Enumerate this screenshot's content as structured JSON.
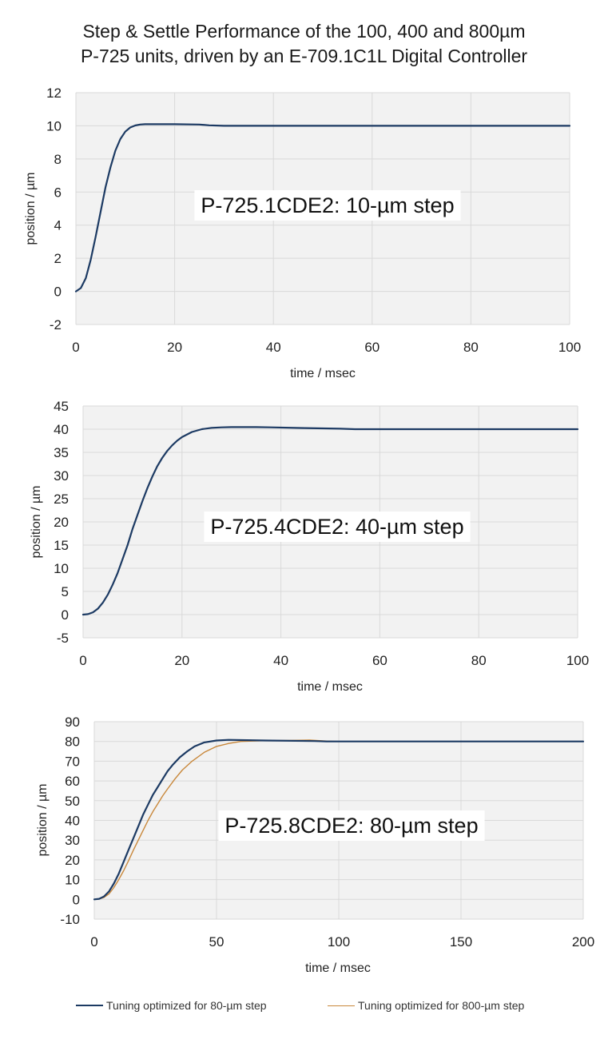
{
  "title": {
    "line1": "Step & Settle Performance of the 100, 400 and 800µm",
    "line2": "P-725 units, driven by an E-709.1C1L Digital Controller"
  },
  "colors": {
    "series_80um": "#1c3a63",
    "series_800um": "#c8873a",
    "grid": "#d9d9d9",
    "plot_bg": "#f2f2f2"
  },
  "chart_data": [
    {
      "type": "line",
      "annotation": "P-725.1CDE2: 10-µm step",
      "xlabel": "time / msec",
      "ylabel": "position / µm",
      "xlim": [
        0,
        100
      ],
      "ylim": [
        -2,
        12
      ],
      "xticks": [
        0,
        20,
        40,
        60,
        80,
        100
      ],
      "yticks": [
        -2,
        0,
        2,
        4,
        6,
        8,
        10,
        12
      ],
      "grid": true,
      "series": [
        {
          "color": "#1c3a63",
          "x": [
            0,
            1,
            2,
            3,
            4,
            5,
            6,
            7,
            8,
            9,
            10,
            11,
            12,
            13,
            14,
            15,
            17,
            20,
            25,
            27,
            30,
            40,
            60,
            80,
            100
          ],
          "y": [
            0,
            0.2,
            0.8,
            1.9,
            3.3,
            4.8,
            6.3,
            7.5,
            8.5,
            9.2,
            9.65,
            9.9,
            10.02,
            10.08,
            10.1,
            10.1,
            10.1,
            10.1,
            10.08,
            10.03,
            10.0,
            10.0,
            10.0,
            10.0,
            10.0
          ]
        }
      ]
    },
    {
      "type": "line",
      "annotation": "P-725.4CDE2: 40-µm step",
      "xlabel": "time / msec",
      "ylabel": "position / µm",
      "xlim": [
        0,
        100
      ],
      "ylim": [
        -5,
        45
      ],
      "xticks": [
        0,
        20,
        40,
        60,
        80,
        100
      ],
      "yticks": [
        -5,
        0,
        5,
        10,
        15,
        20,
        25,
        30,
        35,
        40,
        45
      ],
      "grid": true,
      "series": [
        {
          "color": "#1c3a63",
          "x": [
            0,
            1,
            2,
            3,
            4,
            5,
            6,
            7,
            8,
            9,
            10,
            11,
            12,
            13,
            14,
            15,
            16,
            17,
            18,
            19,
            20,
            22,
            24,
            26,
            28,
            30,
            35,
            38,
            45,
            52,
            55,
            60,
            80,
            100
          ],
          "y": [
            0,
            0.1,
            0.5,
            1.3,
            2.6,
            4.3,
            6.5,
            9.0,
            12.0,
            15.0,
            18.5,
            21.5,
            24.5,
            27.3,
            29.8,
            32.0,
            33.8,
            35.3,
            36.5,
            37.5,
            38.3,
            39.4,
            40.0,
            40.3,
            40.4,
            40.45,
            40.45,
            40.4,
            40.25,
            40.1,
            40.0,
            40.0,
            40.0,
            40.0
          ]
        }
      ]
    },
    {
      "type": "line",
      "annotation": "P-725.8CDE2: 80-µm step",
      "xlabel": "time / msec",
      "ylabel": "position / µm",
      "xlim": [
        0,
        200
      ],
      "ylim": [
        -10,
        90
      ],
      "xticks": [
        0,
        50,
        100,
        150,
        200
      ],
      "yticks": [
        -10,
        0,
        10,
        20,
        30,
        40,
        50,
        60,
        70,
        80,
        90
      ],
      "grid": true,
      "series": [
        {
          "name": "Tuning optimized for 80-µm step",
          "color": "#1c3a63",
          "x": [
            0,
            2,
            4,
            6,
            8,
            10,
            12,
            14,
            16,
            18,
            20,
            22,
            24,
            26,
            28,
            30,
            32,
            35,
            38,
            41,
            45,
            50,
            55,
            60,
            70,
            90,
            95,
            100,
            150,
            200
          ],
          "y": [
            0,
            0.3,
            1.5,
            4,
            8,
            13,
            19,
            25,
            31,
            37,
            43,
            48,
            53,
            57,
            61,
            65,
            68,
            72,
            75,
            77.5,
            79.5,
            80.5,
            80.8,
            80.7,
            80.5,
            80.2,
            80.0,
            80.0,
            80.0,
            80.0
          ]
        },
        {
          "name": "Tuning optimized for 800-µm step",
          "color": "#c8873a",
          "x": [
            0,
            2,
            4,
            6,
            8,
            10,
            12,
            14,
            16,
            18,
            20,
            22,
            24,
            26,
            28,
            30,
            33,
            36,
            40,
            45,
            50,
            55,
            60,
            70,
            80,
            88,
            95,
            100,
            150,
            200
          ],
          "y": [
            0,
            0.2,
            1.0,
            2.8,
            6,
            10,
            14.5,
            19.5,
            25,
            30,
            35,
            40,
            44.5,
            48.5,
            52.5,
            56,
            61,
            65.5,
            70,
            74.5,
            77.5,
            79,
            80,
            80.4,
            80.5,
            80.7,
            80.2,
            80.0,
            80.0,
            80.0
          ]
        }
      ]
    }
  ]
}
